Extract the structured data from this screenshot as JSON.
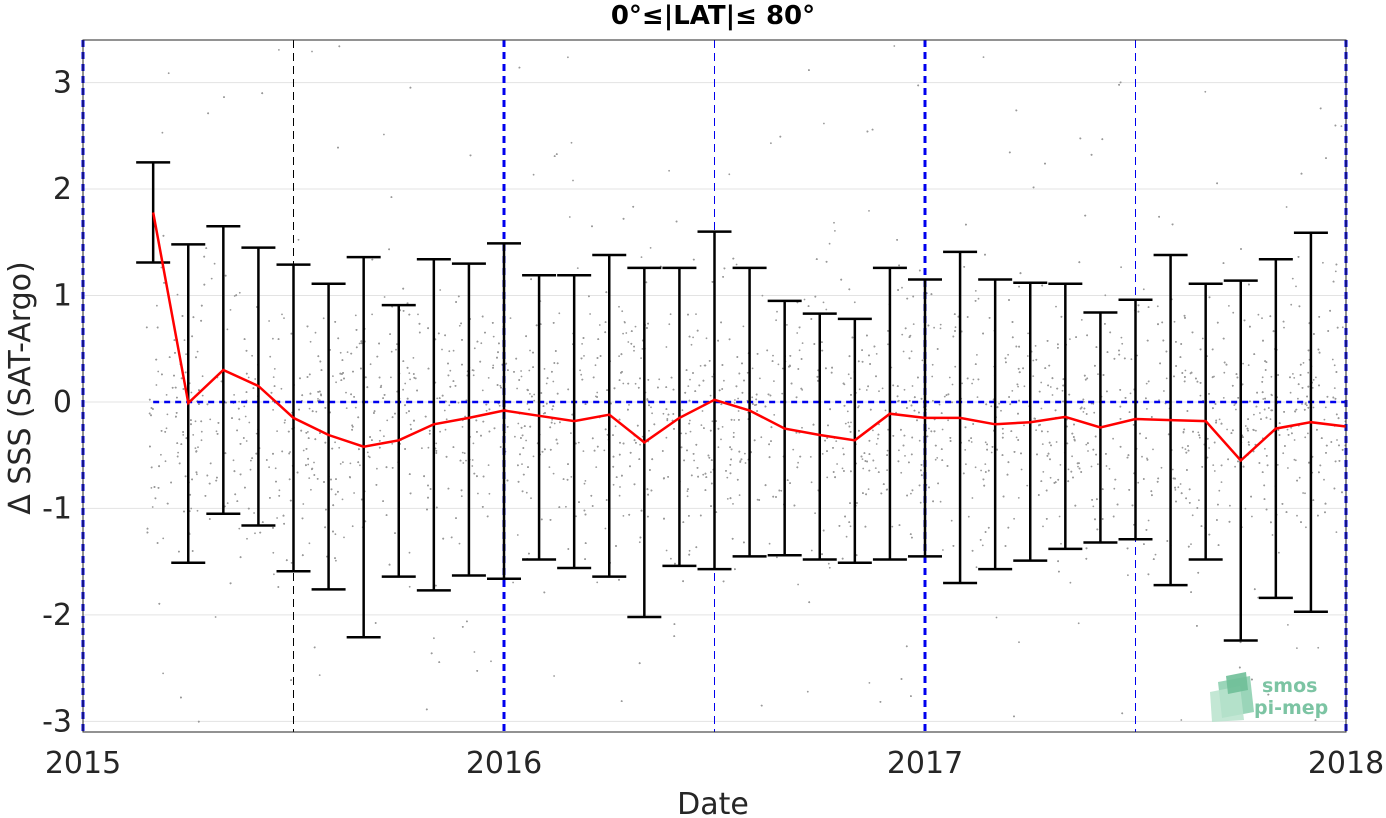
{
  "chart_data": {
    "type": "line",
    "title": "0°≤|LAT|≤ 80°",
    "xlabel": "Date",
    "ylabel": "Δ SSS (SAT-Argo)",
    "xlim": [
      2015.0,
      2018.0
    ],
    "ylim": [
      -3.1,
      3.4
    ],
    "x_ticks": [
      2015,
      2016,
      2017,
      2018
    ],
    "x_tick_labels": [
      "2015",
      "2016",
      "2017",
      "2018"
    ],
    "y_ticks": [
      3,
      2,
      1,
      0,
      -1,
      -2,
      -3
    ],
    "y_tick_labels": [
      "3",
      "2",
      "1",
      "0",
      "-1",
      "-2",
      "-3"
    ],
    "grid": "horizontal",
    "series": [
      {
        "kind": "mean-line-with-error-bars",
        "color": "#ff0000",
        "errorbar_color": "#000000",
        "x": [
          "2015-03",
          "2015-04",
          "2015-05",
          "2015-06",
          "2015-07",
          "2015-08",
          "2015-09",
          "2015-10",
          "2015-11",
          "2015-12",
          "2016-01",
          "2016-02",
          "2016-03",
          "2016-04",
          "2016-05",
          "2016-06",
          "2016-07",
          "2016-08",
          "2016-09",
          "2016-10",
          "2016-11",
          "2016-12",
          "2017-01",
          "2017-02",
          "2017-03",
          "2017-04",
          "2017-05",
          "2017-06",
          "2017-07",
          "2017-08",
          "2017-09",
          "2017-10",
          "2017-11",
          "2017-12",
          "2018-01"
        ],
        "mean": [
          1.78,
          -0.01,
          0.3,
          0.15,
          -0.15,
          -0.31,
          -0.42,
          -0.36,
          -0.21,
          -0.15,
          -0.08,
          -0.13,
          -0.18,
          -0.12,
          -0.38,
          -0.15,
          0.02,
          -0.08,
          -0.25,
          -0.31,
          -0.36,
          -0.11,
          -0.15,
          -0.15,
          -0.21,
          -0.19,
          -0.14,
          -0.24,
          -0.16,
          -0.17,
          -0.18,
          -0.55,
          -0.25,
          -0.19,
          -0.23
        ],
        "upper": [
          2.25,
          1.48,
          1.65,
          1.45,
          1.29,
          1.11,
          1.36,
          0.91,
          1.34,
          1.3,
          1.49,
          1.19,
          1.19,
          1.38,
          1.26,
          1.26,
          1.6,
          1.26,
          0.95,
          0.83,
          0.78,
          1.26,
          1.15,
          1.41,
          1.15,
          1.12,
          1.11,
          0.84,
          0.96,
          1.38,
          1.11,
          1.14,
          1.34,
          1.59,
          null
        ],
        "lower": [
          1.31,
          -1.51,
          -1.05,
          -1.16,
          -1.59,
          -1.76,
          -2.21,
          -1.64,
          -1.77,
          -1.63,
          -1.66,
          -1.48,
          -1.56,
          -1.64,
          -2.02,
          -1.54,
          -1.57,
          -1.45,
          -1.44,
          -1.48,
          -1.51,
          -1.48,
          -1.45,
          -1.7,
          -1.57,
          -1.49,
          -1.38,
          -1.32,
          -1.29,
          -1.72,
          -1.48,
          -2.24,
          -1.84,
          -1.97,
          null
        ]
      },
      {
        "kind": "scatter",
        "color": "#999999",
        "description_only": false
      }
    ],
    "reference_lines": {
      "horizontal_zero": {
        "y": 0,
        "color": "#0000ee",
        "style": "dashed"
      },
      "year_lines": {
        "x": [
          2015,
          2016,
          2017,
          2018
        ],
        "color": "#0000ee",
        "style": "dashed-thick"
      },
      "mid_year_lines": {
        "x": [
          "2015-07",
          "2016-07",
          "2017-07"
        ],
        "colors": [
          "#000000",
          "#0000ee",
          "#0000ee"
        ],
        "style": "dashed-thin"
      }
    }
  },
  "logo": {
    "line1": "smos",
    "line2": "pi-mep",
    "color": "#7cc4a3"
  }
}
